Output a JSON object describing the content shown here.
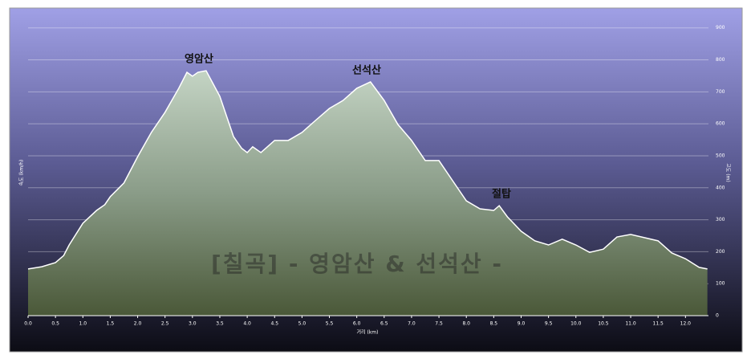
{
  "chart_data": {
    "type": "area",
    "x_label": "거리 (km)",
    "y_label": "속도 (km/h)",
    "y2_label": "고도 (m)",
    "watermark": "[칠곡] - 영암산 & 선석산 -",
    "annotations": [
      "영암산",
      "선석산",
      "절탑"
    ],
    "color": "#ffffff",
    "x": [
      0.0,
      0.25,
      0.5,
      0.65,
      0.75,
      1.0,
      1.25,
      1.4,
      1.5,
      1.75,
      2.0,
      2.25,
      2.5,
      2.75,
      2.9,
      3.0,
      3.1,
      3.25,
      3.5,
      3.75,
      3.9,
      4.0,
      4.1,
      4.25,
      4.5,
      4.75,
      5.0,
      5.25,
      5.5,
      5.75,
      6.0,
      6.25,
      6.5,
      6.75,
      7.0,
      7.25,
      7.5,
      7.75,
      8.0,
      8.25,
      8.5,
      8.6,
      8.75,
      9.0,
      9.25,
      9.5,
      9.75,
      10.0,
      10.25,
      10.5,
      10.75,
      11.0,
      11.25,
      11.5,
      11.75,
      12.0,
      12.25,
      12.4
    ],
    "values": [
      146,
      153,
      166,
      188,
      221,
      289,
      329,
      347,
      372,
      415,
      497,
      573,
      636,
      711,
      761,
      749,
      761,
      766,
      686,
      560,
      523,
      510,
      528,
      510,
      548,
      548,
      573,
      611,
      648,
      673,
      711,
      731,
      673,
      598,
      548,
      485,
      485,
      422,
      359,
      334,
      329,
      344,
      309,
      264,
      234,
      221,
      239,
      221,
      198,
      208,
      246,
      254,
      244,
      234,
      196,
      178,
      151,
      146
    ],
    "xlim": [
      0,
      12.42
    ],
    "ylim": [
      0,
      957
    ],
    "xticks": [
      {
        "value": 0,
        "label": "0.0"
      },
      {
        "value": 0.5,
        "label": "0.5"
      },
      {
        "value": 1,
        "label": "1.0"
      },
      {
        "value": 1.5,
        "label": "1.5"
      },
      {
        "value": 2,
        "label": "2.0"
      },
      {
        "value": 2.5,
        "label": "2.5"
      },
      {
        "value": 3,
        "label": "3.0"
      },
      {
        "value": 3.5,
        "label": "3.5"
      },
      {
        "value": 4,
        "label": "4.0"
      },
      {
        "value": 4.5,
        "label": "4.5"
      },
      {
        "value": 5,
        "label": "5.0"
      },
      {
        "value": 5.5,
        "label": "5.5"
      },
      {
        "value": 6,
        "label": "6.0"
      },
      {
        "value": 6.5,
        "label": "6.5"
      },
      {
        "value": 7,
        "label": "7.0"
      },
      {
        "value": 7.5,
        "label": "7.5"
      },
      {
        "value": 8,
        "label": "8.0"
      },
      {
        "value": 8.5,
        "label": "8.5"
      },
      {
        "value": 9,
        "label": "9.0"
      },
      {
        "value": 9.5,
        "label": "9.5"
      },
      {
        "value": 10,
        "label": "10.0"
      },
      {
        "value": 10.5,
        "label": "10.5"
      },
      {
        "value": 11,
        "label": "11.0"
      },
      {
        "value": 11.5,
        "label": "11.5"
      },
      {
        "value": 12,
        "label": "12.0"
      }
    ],
    "yticks": [
      0,
      100,
      200,
      300,
      400,
      500,
      600,
      700,
      800,
      900
    ],
    "grid": true
  }
}
